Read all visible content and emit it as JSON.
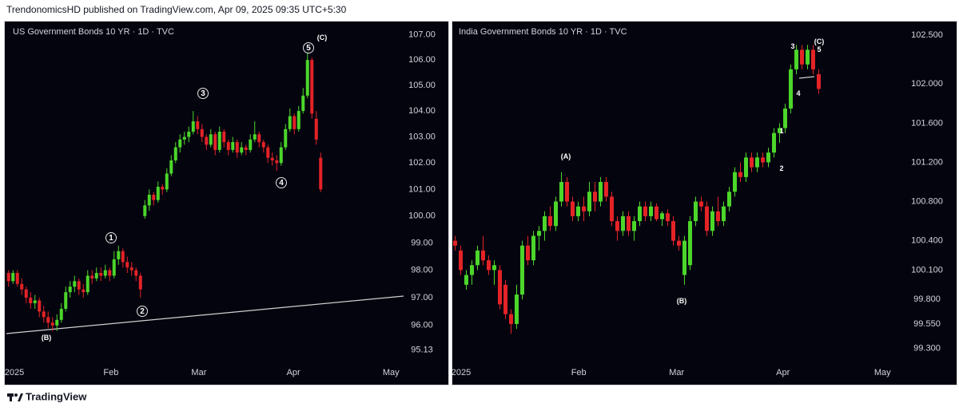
{
  "header": {
    "title": "TrendonomicsHD published on TradingView.com, Apr 09, 2025 09:35 UTC+5:30"
  },
  "footer": {
    "brand": "TradingView"
  },
  "chart_data": [
    {
      "type": "candlestick",
      "title": "US Government Bonds 10 YR · 1D · TVC",
      "log_scale": true,
      "grid": false,
      "up_color": "#4cd62a",
      "down_color": "#e42327",
      "candles": [
        [
          97.9,
          98.0,
          97.4,
          97.6
        ],
        [
          97.6,
          98.0,
          97.5,
          97.9
        ],
        [
          97.9,
          98.0,
          97.4,
          97.5
        ],
        [
          97.5,
          97.7,
          97.1,
          97.3
        ],
        [
          97.3,
          97.4,
          96.8,
          97.0
        ],
        [
          97.0,
          97.2,
          96.6,
          96.8
        ],
        [
          96.8,
          97.1,
          96.6,
          96.9
        ],
        [
          96.9,
          97.0,
          96.3,
          96.5
        ],
        [
          96.5,
          96.7,
          96.1,
          96.3
        ],
        [
          96.3,
          96.5,
          95.9,
          96.1
        ],
        [
          96.1,
          96.3,
          95.8,
          96.0
        ],
        [
          96.0,
          96.4,
          95.8,
          96.2
        ],
        [
          96.2,
          96.8,
          96.1,
          96.6
        ],
        [
          96.6,
          97.4,
          96.5,
          97.2
        ],
        [
          97.2,
          97.6,
          97.0,
          97.4
        ],
        [
          97.4,
          97.8,
          97.2,
          97.6
        ],
        [
          97.6,
          97.7,
          97.1,
          97.3
        ],
        [
          97.3,
          97.5,
          97.0,
          97.2
        ],
        [
          97.2,
          98.0,
          97.1,
          97.8
        ],
        [
          97.8,
          98.0,
          97.5,
          97.7
        ],
        [
          97.7,
          98.1,
          97.6,
          97.9
        ],
        [
          97.9,
          98.1,
          97.6,
          97.8
        ],
        [
          97.8,
          98.2,
          97.7,
          98.0
        ],
        [
          98.0,
          98.1,
          97.6,
          97.8
        ],
        [
          97.8,
          98.7,
          97.7,
          98.4
        ],
        [
          98.4,
          98.9,
          98.2,
          98.7
        ],
        [
          98.7,
          98.8,
          98.1,
          98.3
        ],
        [
          98.3,
          98.5,
          97.9,
          98.1
        ],
        [
          98.1,
          98.3,
          97.8,
          98.0
        ],
        [
          98.0,
          98.1,
          97.6,
          97.8
        ],
        [
          97.8,
          97.9,
          97.0,
          97.3
        ],
        [
          100.0,
          100.6,
          99.9,
          100.4
        ],
        [
          100.4,
          101.0,
          100.2,
          100.8
        ],
        [
          100.8,
          100.9,
          100.4,
          100.6
        ],
        [
          100.6,
          101.3,
          100.5,
          101.1
        ],
        [
          101.1,
          101.2,
          100.8,
          101.0
        ],
        [
          101.0,
          101.8,
          100.9,
          101.6
        ],
        [
          101.6,
          102.3,
          101.5,
          102.1
        ],
        [
          102.1,
          102.8,
          102.0,
          102.6
        ],
        [
          102.6,
          103.1,
          102.4,
          102.9
        ],
        [
          102.9,
          103.2,
          102.7,
          103.0
        ],
        [
          103.0,
          103.4,
          102.8,
          103.2
        ],
        [
          103.2,
          104.0,
          103.1,
          103.6
        ],
        [
          103.6,
          103.8,
          103.1,
          103.3
        ],
        [
          103.3,
          103.5,
          102.8,
          103.0
        ],
        [
          103.0,
          103.1,
          102.5,
          102.7
        ],
        [
          102.7,
          103.3,
          102.6,
          103.1
        ],
        [
          103.1,
          103.2,
          102.3,
          102.5
        ],
        [
          102.5,
          103.4,
          102.4,
          103.2
        ],
        [
          103.2,
          103.3,
          102.6,
          102.8
        ],
        [
          102.8,
          102.9,
          102.3,
          102.5
        ],
        [
          102.5,
          103.0,
          102.4,
          102.8
        ],
        [
          102.8,
          102.9,
          102.2,
          102.4
        ],
        [
          102.4,
          102.8,
          102.3,
          102.6
        ],
        [
          102.6,
          102.7,
          102.3,
          102.5
        ],
        [
          102.5,
          103.1,
          102.4,
          102.9
        ],
        [
          102.9,
          103.6,
          102.8,
          103.1
        ],
        [
          103.1,
          103.2,
          102.6,
          102.8
        ],
        [
          102.8,
          102.9,
          102.4,
          102.6
        ],
        [
          102.6,
          102.7,
          102.0,
          102.2
        ],
        [
          102.2,
          102.4,
          101.9,
          102.1
        ],
        [
          102.1,
          102.3,
          101.7,
          102.0
        ],
        [
          102.0,
          102.8,
          101.9,
          102.6
        ],
        [
          102.6,
          103.5,
          102.5,
          103.3
        ],
        [
          103.3,
          104.1,
          103.2,
          103.8
        ],
        [
          103.8,
          103.9,
          103.1,
          103.3
        ],
        [
          103.3,
          104.2,
          103.2,
          104.0
        ],
        [
          104.0,
          104.9,
          103.9,
          104.6
        ],
        [
          104.6,
          106.3,
          104.5,
          106.0
        ],
        [
          106.0,
          106.1,
          103.7,
          103.9
        ],
        [
          103.7,
          104.0,
          102.7,
          102.9
        ],
        [
          102.2,
          102.4,
          100.9,
          101.0
        ]
      ],
      "xlim": [
        -0.5,
        89.86
      ],
      "xticks": [
        {
          "value": 1.32,
          "label": "2025"
        },
        {
          "value": 23.3,
          "label": "Feb"
        },
        {
          "value": 43.3,
          "label": "Mar"
        },
        {
          "value": 64.8,
          "label": "Apr"
        },
        {
          "value": 87.0,
          "label": "May"
        }
      ],
      "ylim": [
        94.66,
        107.5
      ],
      "yticks": [
        {
          "value": 107,
          "label": "107.00"
        },
        {
          "value": 106,
          "label": "106.00"
        },
        {
          "value": 105,
          "label": "105.00"
        },
        {
          "value": 104,
          "label": "104.00"
        },
        {
          "value": 103,
          "label": "103.00"
        },
        {
          "value": 102,
          "label": "102.00"
        },
        {
          "value": 101,
          "label": "101.00"
        },
        {
          "value": 100,
          "label": "100.00"
        },
        {
          "value": 99,
          "label": "99.00"
        },
        {
          "value": 98,
          "label": "98.00"
        },
        {
          "value": 97,
          "label": "97.00"
        },
        {
          "value": 96,
          "label": "96.00"
        },
        {
          "value": 95.13,
          "label": "95.13"
        }
      ],
      "annotations": [
        {
          "text": "(B)",
          "circled": false
        },
        {
          "text": "1",
          "circled": true
        },
        {
          "text": "2",
          "circled": true
        },
        {
          "text": "3",
          "circled": true
        },
        {
          "text": "4",
          "circled": true
        },
        {
          "text": "5",
          "circled": true
        },
        {
          "text": "(C)",
          "circled": false
        }
      ]
    },
    {
      "type": "candlestick",
      "title": "India Government Bonds 10 YR · 1D · TVC",
      "log_scale": false,
      "grid": false,
      "up_color": "#4cd62a",
      "down_color": "#e42327",
      "candles": [
        [
          100.4,
          100.45,
          100.3,
          100.35
        ],
        [
          100.3,
          100.35,
          100.05,
          100.1
        ],
        [
          99.95,
          100.1,
          99.9,
          100.05
        ],
        [
          100.05,
          100.2,
          99.95,
          100.15
        ],
        [
          100.15,
          100.35,
          100.1,
          100.3
        ],
        [
          100.3,
          100.45,
          100.15,
          100.2
        ],
        [
          100.2,
          100.25,
          100.05,
          100.1
        ],
        [
          100.1,
          100.2,
          99.95,
          100.15
        ],
        [
          100.1,
          100.15,
          99.7,
          99.75
        ],
        [
          99.95,
          100.0,
          99.6,
          99.65
        ],
        [
          99.65,
          99.7,
          99.45,
          99.55
        ],
        [
          99.55,
          99.95,
          99.5,
          99.85
        ],
        [
          99.85,
          100.4,
          99.8,
          100.35
        ],
        [
          100.35,
          100.45,
          100.15,
          100.2
        ],
        [
          100.2,
          100.5,
          100.15,
          100.45
        ],
        [
          100.45,
          100.55,
          100.3,
          100.5
        ],
        [
          100.5,
          100.7,
          100.4,
          100.65
        ],
        [
          100.65,
          100.75,
          100.5,
          100.55
        ],
        [
          100.55,
          100.85,
          100.5,
          100.8
        ],
        [
          100.8,
          101.1,
          100.75,
          101.0
        ],
        [
          101.0,
          101.05,
          100.75,
          100.8
        ],
        [
          100.8,
          100.85,
          100.6,
          100.65
        ],
        [
          100.65,
          100.8,
          100.6,
          100.75
        ],
        [
          100.75,
          100.85,
          100.6,
          100.7
        ],
        [
          100.7,
          101.0,
          100.65,
          100.9
        ],
        [
          100.9,
          101.0,
          100.7,
          100.8
        ],
        [
          100.8,
          101.05,
          100.75,
          101.0
        ],
        [
          101.0,
          101.05,
          100.8,
          100.85
        ],
        [
          100.85,
          100.9,
          100.55,
          100.6
        ],
        [
          100.6,
          100.65,
          100.4,
          100.5
        ],
        [
          100.5,
          100.7,
          100.45,
          100.65
        ],
        [
          100.65,
          100.7,
          100.45,
          100.5
        ],
        [
          100.5,
          100.65,
          100.4,
          100.6
        ],
        [
          100.6,
          100.8,
          100.55,
          100.75
        ],
        [
          100.75,
          100.8,
          100.6,
          100.65
        ],
        [
          100.65,
          100.8,
          100.6,
          100.75
        ],
        [
          100.75,
          100.78,
          100.6,
          100.62
        ],
        [
          100.62,
          100.7,
          100.55,
          100.68
        ],
        [
          100.68,
          100.72,
          100.55,
          100.6
        ],
        [
          100.6,
          100.65,
          100.35,
          100.4
        ],
        [
          100.4,
          100.45,
          100.3,
          100.35
        ],
        [
          100.05,
          100.45,
          99.95,
          100.4
        ],
        [
          100.15,
          100.65,
          100.1,
          100.6
        ],
        [
          100.6,
          100.85,
          100.55,
          100.8
        ],
        [
          100.8,
          100.85,
          100.7,
          100.75
        ],
        [
          100.75,
          100.8,
          100.45,
          100.5
        ],
        [
          100.5,
          100.75,
          100.45,
          100.7
        ],
        [
          100.7,
          100.85,
          100.55,
          100.6
        ],
        [
          100.6,
          100.8,
          100.55,
          100.75
        ],
        [
          100.75,
          100.95,
          100.7,
          100.9
        ],
        [
          100.9,
          101.15,
          100.85,
          101.1
        ],
        [
          101.1,
          101.2,
          101.0,
          101.05
        ],
        [
          101.05,
          101.3,
          101.0,
          101.25
        ],
        [
          101.25,
          101.3,
          101.1,
          101.15
        ],
        [
          101.15,
          101.3,
          101.1,
          101.25
        ],
        [
          101.25,
          101.3,
          101.15,
          101.2
        ],
        [
          101.2,
          101.35,
          101.15,
          101.3
        ],
        [
          101.3,
          101.55,
          101.25,
          101.5
        ],
        [
          101.5,
          101.6,
          101.4,
          101.55
        ],
        [
          101.55,
          101.8,
          101.5,
          101.75
        ],
        [
          101.75,
          102.2,
          101.7,
          102.15
        ],
        [
          102.15,
          102.4,
          102.1,
          102.35
        ],
        [
          102.35,
          102.4,
          102.15,
          102.2
        ],
        [
          102.2,
          102.4,
          102.15,
          102.35
        ],
        [
          102.35,
          102.4,
          102.1,
          102.15
        ],
        [
          102.1,
          102.15,
          101.9,
          101.95
        ]
      ],
      "xlim": [
        -0.5,
        77.93
      ],
      "xticks": [
        {
          "value": 1.07,
          "label": "2025"
        },
        {
          "value": 22.1,
          "label": "Feb"
        },
        {
          "value": 39.6,
          "label": "Mar"
        },
        {
          "value": 58.6,
          "label": "Apr"
        },
        {
          "value": 76.4,
          "label": "May"
        }
      ],
      "ylim": [
        99.15,
        102.63
      ],
      "yticks": [
        {
          "value": 102.5,
          "label": "102.500"
        },
        {
          "value": 102.0,
          "label": "102.000"
        },
        {
          "value": 101.6,
          "label": "101.600"
        },
        {
          "value": 101.2,
          "label": "101.200"
        },
        {
          "value": 100.8,
          "label": "100.800"
        },
        {
          "value": 100.4,
          "label": "100.400"
        },
        {
          "value": 100.1,
          "label": "100.100"
        },
        {
          "value": 99.8,
          "label": "99.800"
        },
        {
          "value": 99.55,
          "label": "99.550"
        },
        {
          "value": 99.3,
          "label": "99.300"
        }
      ],
      "annotations": [
        {
          "text": "(A)",
          "circled": false
        },
        {
          "text": "(B)",
          "circled": false
        },
        {
          "text": "1",
          "circled": false
        },
        {
          "text": "2",
          "circled": false
        },
        {
          "text": "3",
          "circled": false
        },
        {
          "text": "4",
          "circled": false
        },
        {
          "text": "5",
          "circled": false
        },
        {
          "text": "(C)",
          "circled": false
        }
      ]
    }
  ]
}
